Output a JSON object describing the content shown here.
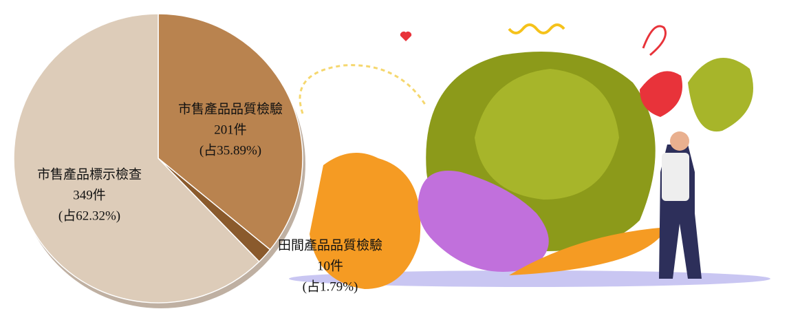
{
  "chart_data": {
    "type": "pie",
    "categories": [
      "市售產品品質檢驗",
      "田間產品品質檢驗",
      "市售產品標示檢查"
    ],
    "values": [
      201,
      10,
      349
    ],
    "value_labels": [
      "201件",
      "10件",
      "349件"
    ],
    "percentages": [
      35.89,
      1.79,
      62.32
    ],
    "percent_labels": [
      "(占35.89%)",
      "(占1.79%)",
      "(占62.32%)"
    ],
    "colors": [
      "#b9834f",
      "#8a5a2c",
      "#ddccb9"
    ]
  }
}
